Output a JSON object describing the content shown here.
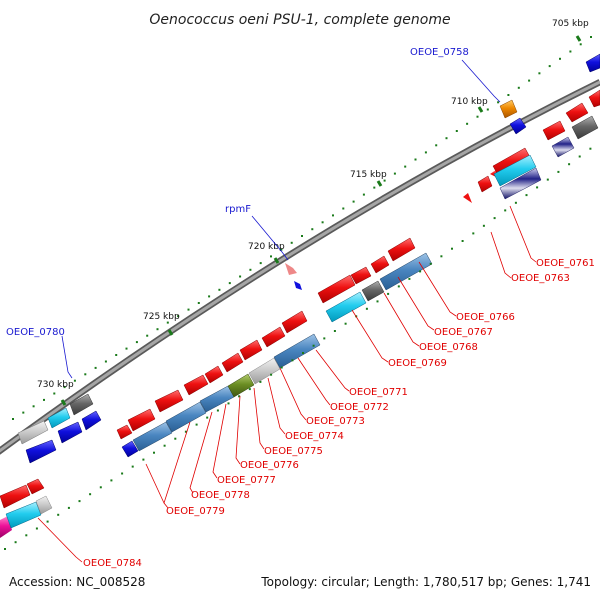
{
  "title": "Oenococcus oeni PSU-1, complete genome",
  "footer": {
    "accession": "Accession: NC_008528",
    "summary": "Topology: circular; Length: 1,780,517 bp; Genes: 1,741"
  },
  "ticks": [
    "705 kbp",
    "710 kbp",
    "715 kbp",
    "720 kbp",
    "725 kbp",
    "730 kbp"
  ],
  "genes_red_labels": [
    "OEOE_0761",
    "OEOE_0763",
    "OEOE_0766",
    "OEOE_0767",
    "OEOE_0768",
    "OEOE_0769",
    "OEOE_0771",
    "OEOE_0772",
    "OEOE_0773",
    "OEOE_0774",
    "OEOE_0775",
    "OEOE_0776",
    "OEOE_0777",
    "OEOE_0778",
    "OEOE_0779",
    "OEOE_0784"
  ],
  "genes_blue_labels": [
    "OEOE_0758",
    "rpmF",
    "OEOE_0780"
  ],
  "colors": {
    "backbone": "#8a8a8a",
    "gene_red": "#ee1111",
    "gene_blue": "#1010dd",
    "gene_cyan": "#22ccee",
    "gene_steel": "#4a86c0",
    "gene_gray": "#666666",
    "gene_lightgray": "#cccccc",
    "gene_orange": "#ee8800",
    "gene_olive": "#6b8e23",
    "gene_magenta": "#ee1199",
    "tick_green": "#1a7a1a",
    "label_red": "#e00000",
    "label_blue": "#1a1ad0"
  }
}
